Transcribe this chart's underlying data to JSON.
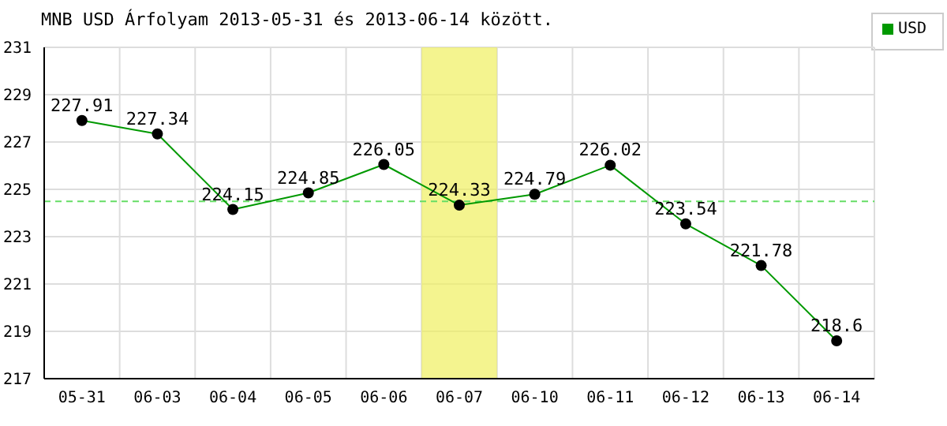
{
  "chart_data": {
    "type": "line",
    "title": "MNB USD Árfolyam 2013-05-31 és 2013-06-14 között.",
    "categories": [
      "05-31",
      "06-03",
      "06-04",
      "06-05",
      "06-06",
      "06-07",
      "06-10",
      "06-11",
      "06-12",
      "06-13",
      "06-14"
    ],
    "series": [
      {
        "name": "USD",
        "color": "#009900",
        "values": [
          227.91,
          227.34,
          224.15,
          224.85,
          226.05,
          224.33,
          224.79,
          226.02,
          223.54,
          221.78,
          218.6
        ]
      }
    ],
    "ylim": [
      217,
      231
    ],
    "yticks": [
      217,
      219,
      221,
      223,
      225,
      227,
      229,
      231
    ],
    "grid": true,
    "legend": "top right",
    "marker": "circle",
    "line_style": "solid",
    "data_labels": true,
    "ref_lines": [
      {
        "axis": "y",
        "value": 224.49,
        "color": "#66dd66",
        "line_style": "dashed"
      }
    ],
    "bands": [
      {
        "axis": "x",
        "from": "06-07",
        "to": "06-07",
        "color": "#f0f060"
      }
    ]
  }
}
